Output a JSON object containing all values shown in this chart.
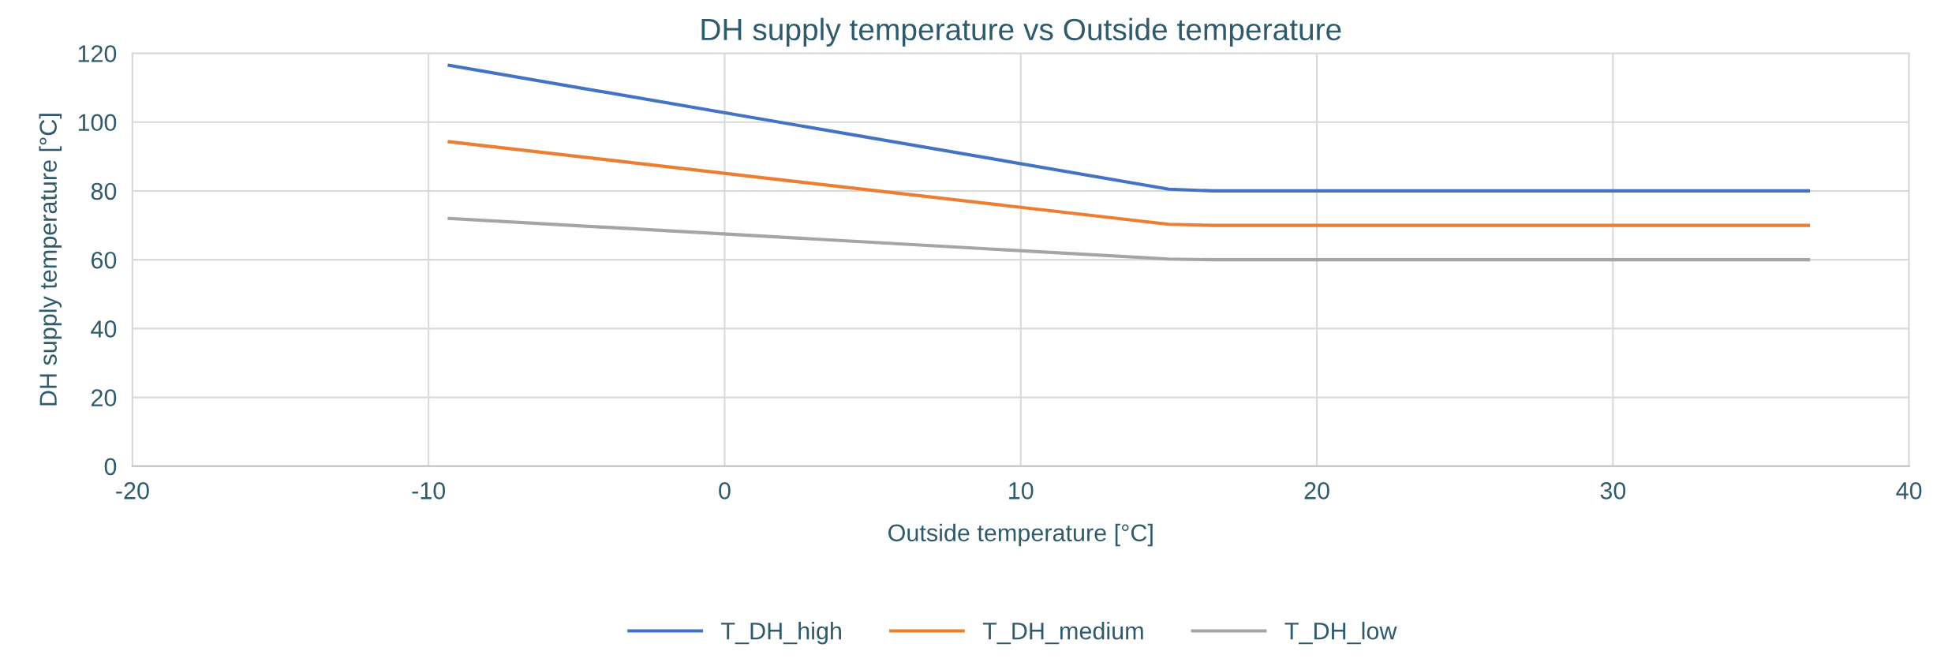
{
  "chart_data": {
    "type": "line",
    "title": "DH supply temperature vs Outside temperature",
    "xlabel": "Outside temperature [°C]",
    "ylabel": "DH supply temperature [°C]",
    "series": [
      {
        "name": "T_DH_high",
        "color": "#4472c4",
        "x": [
          -9.3,
          15,
          16.5,
          36.6
        ],
        "values": [
          116.5,
          80.5,
          80,
          80
        ]
      },
      {
        "name": "T_DH_medium",
        "color": "#ed7d31",
        "x": [
          -9.3,
          15,
          16.5,
          36.6
        ],
        "values": [
          94.3,
          70.3,
          70,
          70
        ]
      },
      {
        "name": "T_DH_low",
        "color": "#a5a5a5",
        "x": [
          -9.3,
          15,
          16.5,
          36.6
        ],
        "values": [
          72,
          60.2,
          60,
          60
        ]
      }
    ],
    "xlim": [
      -20,
      40
    ],
    "xticks": [
      -20,
      -10,
      0,
      10,
      20,
      30,
      40
    ],
    "ylim": [
      0,
      120
    ],
    "yticks": [
      0,
      20,
      40,
      60,
      80,
      100,
      120
    ],
    "grid": true,
    "legend": "bottom",
    "marker": "none",
    "line_style": "solid"
  }
}
